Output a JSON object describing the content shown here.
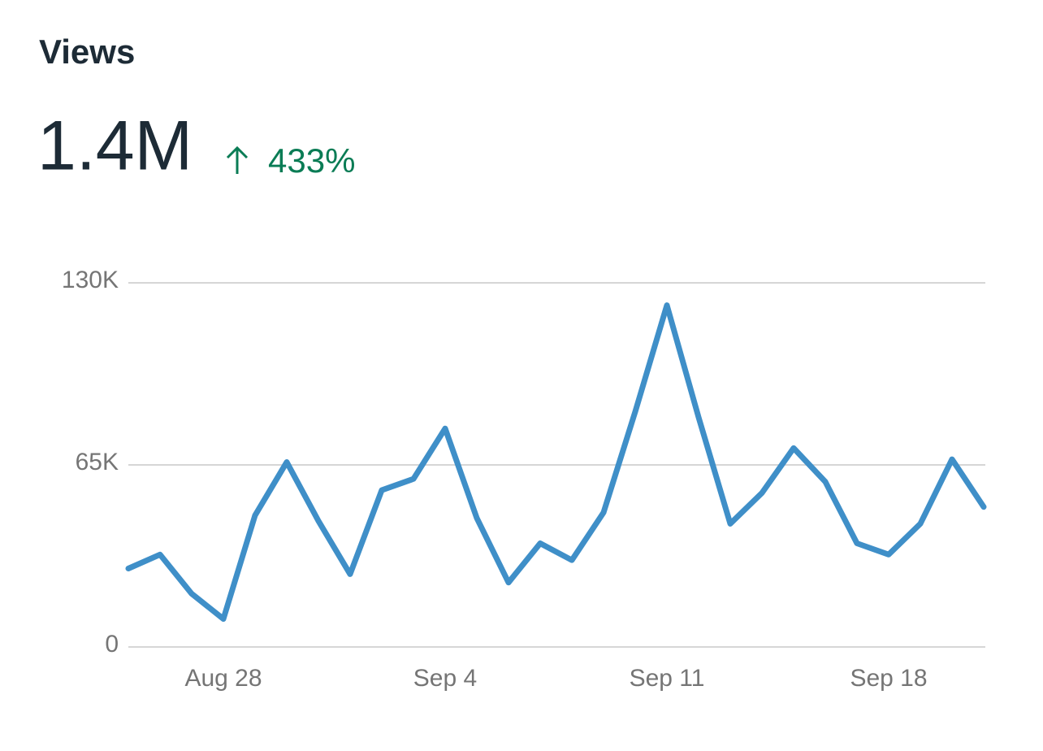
{
  "header": {
    "title": "Views",
    "total": "1.4M",
    "change": "433%"
  },
  "chart_data": {
    "type": "line",
    "categories": [
      null,
      null,
      null,
      "Aug 28",
      null,
      null,
      null,
      null,
      null,
      null,
      "Sep 4",
      null,
      null,
      null,
      null,
      null,
      null,
      "Sep 11",
      null,
      null,
      null,
      null,
      null,
      null,
      "Sep 18",
      null,
      null,
      null
    ],
    "series": [
      {
        "name": "Views",
        "color": "#3f8fc8",
        "values": [
          28000,
          33000,
          19000,
          10000,
          47000,
          66000,
          45000,
          26000,
          56000,
          60000,
          78000,
          46000,
          23000,
          37000,
          31000,
          48000,
          84000,
          122000,
          82000,
          44000,
          55000,
          71000,
          59000,
          37000,
          33000,
          44000,
          67000,
          50000
        ]
      }
    ],
    "ylim": [
      0,
      130000
    ],
    "yticks": [
      0,
      {
        "value": 65000,
        "label": "65K"
      },
      {
        "value": 130000,
        "label": "130K"
      }
    ],
    "grid": true
  }
}
